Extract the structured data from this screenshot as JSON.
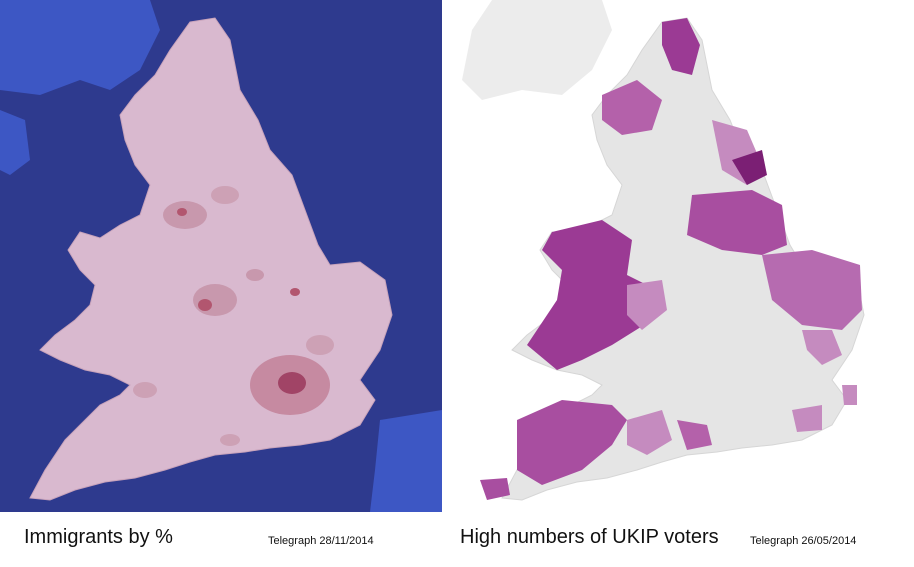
{
  "left_map": {
    "caption": "Immigrants by %",
    "source": "Telegraph 28/11/2014",
    "sea_color": "#2e3a8e",
    "land_color": "#d9b9cf",
    "highlight_color": "#b2566f"
  },
  "right_map": {
    "caption": "High numbers of UKIP voters",
    "source": "Telegraph 26/05/2014",
    "background_color": "#ffffff",
    "land_color": "#e5e5e5",
    "highlight_color": "#9b3a94"
  }
}
